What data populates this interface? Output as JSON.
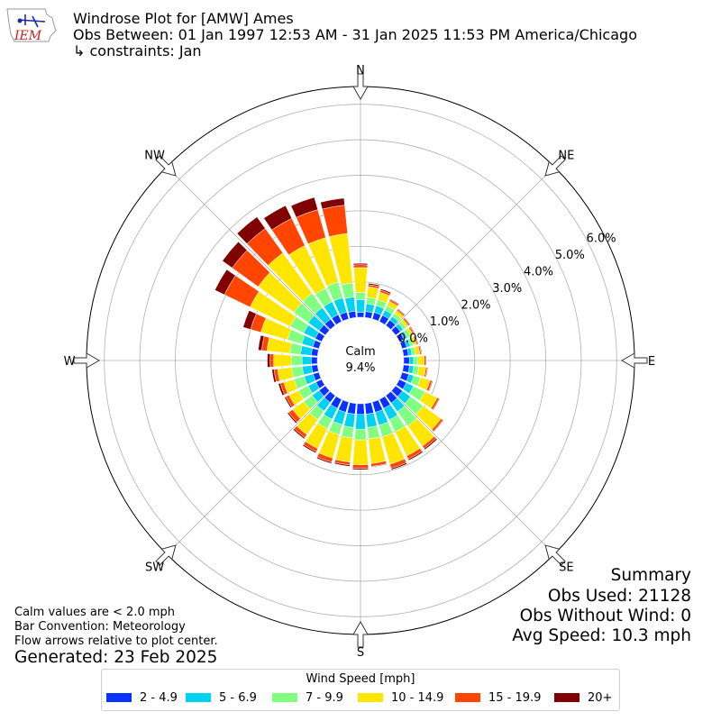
{
  "header": {
    "title": "Windrose Plot for [AMW] Ames",
    "obs_between": "Obs Between: 01 Jan 1997 12:53 AM - 31 Jan 2025 11:53 PM America/Chicago",
    "constraints": "↳ constraints: Jan",
    "logo_text": "IEM"
  },
  "notes": {
    "calm_def": "Calm values are < 2.0 mph",
    "bar_convention": "Bar Convention: Meteorology",
    "flow_arrows": "Flow arrows relative to plot center.",
    "generated": "Generated: 23 Feb 2025"
  },
  "summary": {
    "title": "Summary",
    "obs_used": "Obs Used: 21128",
    "obs_without_wind": "Obs Without Wind: 0",
    "avg_speed": "Avg Speed: 10.3 mph"
  },
  "legend": {
    "title": "Wind Speed [mph]",
    "items": [
      {
        "label": "2 - 4.9",
        "color": "#0a32ff"
      },
      {
        "label": "5 - 6.9",
        "color": "#00d2f0"
      },
      {
        "label": "7 - 9.9",
        "color": "#80ff80"
      },
      {
        "label": "10 - 14.9",
        "color": "#ffe600"
      },
      {
        "label": "15 - 19.9",
        "color": "#ff4500"
      },
      {
        "label": "20+",
        "color": "#800000"
      }
    ]
  },
  "chart_data": {
    "type": "windrose",
    "center_label": "Calm",
    "calm_percent": "9.4%",
    "r_tick_labels": [
      "0.0%",
      "1.0%",
      "2.0%",
      "3.0%",
      "4.0%",
      "5.0%",
      "6.0%"
    ],
    "r_ticks": [
      0,
      1,
      2,
      3,
      4,
      5,
      6
    ],
    "rlim": [
      0,
      6.5
    ],
    "compass_labels": [
      "N",
      "NE",
      "E",
      "SE",
      "S",
      "SW",
      "W",
      "NW"
    ],
    "directions_deg": [
      0,
      10,
      20,
      30,
      40,
      50,
      60,
      70,
      80,
      90,
      100,
      110,
      120,
      130,
      140,
      150,
      160,
      170,
      180,
      190,
      200,
      210,
      220,
      230,
      240,
      250,
      260,
      270,
      280,
      290,
      300,
      310,
      320,
      330,
      340,
      350
    ],
    "series": [
      {
        "name": "2 - 4.9",
        "color": "#0a32ff",
        "values": [
          0.14,
          0.17,
          0.19,
          0.2,
          0.19,
          0.17,
          0.15,
          0.14,
          0.14,
          0.16,
          0.17,
          0.2,
          0.22,
          0.24,
          0.26,
          0.28,
          0.3,
          0.3,
          0.3,
          0.3,
          0.3,
          0.28,
          0.24,
          0.22,
          0.18,
          0.17,
          0.17,
          0.17,
          0.18,
          0.18,
          0.2,
          0.22,
          0.22,
          0.22,
          0.2,
          0.18
        ]
      },
      {
        "name": "5 - 6.9",
        "color": "#00d2f0",
        "values": [
          0.36,
          0.22,
          0.2,
          0.16,
          0.12,
          0.1,
          0.1,
          0.1,
          0.1,
          0.12,
          0.12,
          0.14,
          0.22,
          0.28,
          0.3,
          0.36,
          0.38,
          0.38,
          0.42,
          0.38,
          0.36,
          0.34,
          0.3,
          0.24,
          0.24,
          0.26,
          0.26,
          0.26,
          0.3,
          0.32,
          0.36,
          0.38,
          0.4,
          0.4,
          0.42,
          0.4
        ]
      },
      {
        "name": "7 - 9.9",
        "color": "#80ff80",
        "values": [
          0.2,
          0.18,
          0.17,
          0.14,
          0.11,
          0.1,
          0.1,
          0.1,
          0.1,
          0.12,
          0.14,
          0.2,
          0.36,
          0.44,
          0.5,
          0.38,
          0.34,
          0.32,
          0.3,
          0.3,
          0.3,
          0.3,
          0.3,
          0.3,
          0.3,
          0.3,
          0.3,
          0.3,
          0.3,
          0.42,
          0.42,
          0.5,
          0.5,
          0.42,
          0.46,
          0.4
        ]
      },
      {
        "name": "10 - 14.9",
        "color": "#ffe600",
        "values": [
          0.7,
          0.3,
          0.22,
          0.14,
          0.1,
          0.08,
          0.08,
          0.08,
          0.12,
          0.18,
          0.2,
          0.28,
          0.38,
          0.62,
          0.7,
          0.75,
          0.8,
          0.7,
          0.7,
          0.68,
          0.68,
          0.62,
          0.52,
          0.38,
          0.3,
          0.3,
          0.4,
          0.5,
          0.65,
          0.78,
          1.26,
          1.24,
          1.4,
          1.34,
          1.3,
          1.4
        ]
      },
      {
        "name": "15 - 19.9",
        "color": "#ff4500",
        "values": [
          0.08,
          0.06,
          0.06,
          0.05,
          0.04,
          0.04,
          0.04,
          0.04,
          0.04,
          0.04,
          0.04,
          0.06,
          0.06,
          0.06,
          0.08,
          0.1,
          0.12,
          0.08,
          0.1,
          0.08,
          0.12,
          0.1,
          0.1,
          0.14,
          0.1,
          0.1,
          0.1,
          0.1,
          0.15,
          0.3,
          0.8,
          0.9,
          0.85,
          0.85,
          0.82,
          0.8
        ]
      },
      {
        "name": "20+",
        "color": "#800000",
        "values": [
          0.04,
          0.04,
          0.04,
          0.02,
          0.02,
          0.02,
          0.02,
          0.02,
          0.02,
          0.02,
          0.02,
          0.02,
          0.02,
          0.02,
          0.04,
          0.04,
          0.04,
          0.02,
          0.04,
          0.04,
          0.04,
          0.04,
          0.04,
          0.04,
          0.04,
          0.06,
          0.06,
          0.08,
          0.1,
          0.22,
          0.3,
          0.34,
          0.4,
          0.4,
          0.36,
          0.2
        ]
      }
    ]
  }
}
